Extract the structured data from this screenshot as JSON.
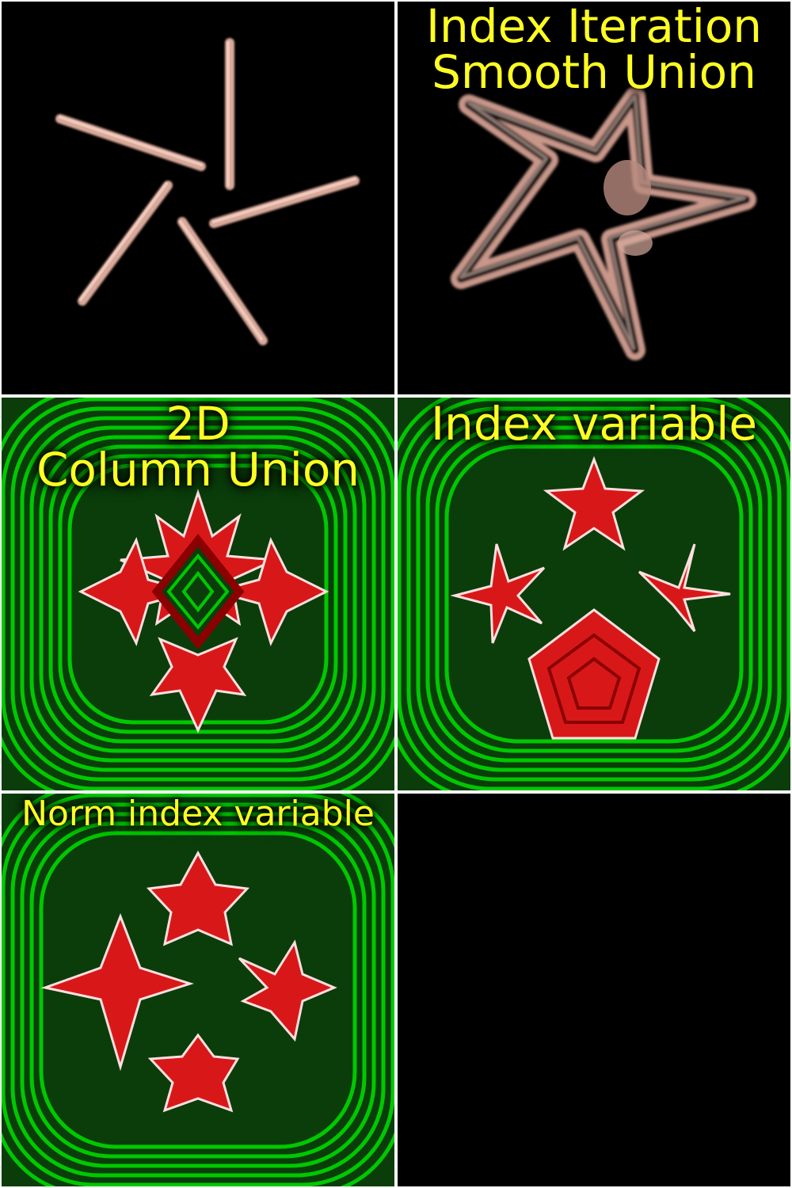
{
  "panels": [
    {
      "id": "capsules",
      "title_lines": []
    },
    {
      "id": "smooth-union",
      "title_lines": [
        "Index Iteration",
        "Smooth Union"
      ]
    },
    {
      "id": "column-union",
      "title_lines": [
        "2D",
        "Column Union"
      ]
    },
    {
      "id": "index-variable",
      "title_lines": [
        "Index variable"
      ]
    },
    {
      "id": "norm-index-variable",
      "title_lines": [
        "Norm index variable"
      ]
    },
    {
      "id": "empty",
      "title_lines": []
    }
  ],
  "colors": {
    "background": "#000000",
    "separator": "#ffffff",
    "title": "#ffff22",
    "capsule": "#e8b8a8",
    "field_green": "#00c800",
    "field_dark": "#0a3a0a",
    "shape_red": "#d81818",
    "shape_edge": "#ffe0e0"
  }
}
